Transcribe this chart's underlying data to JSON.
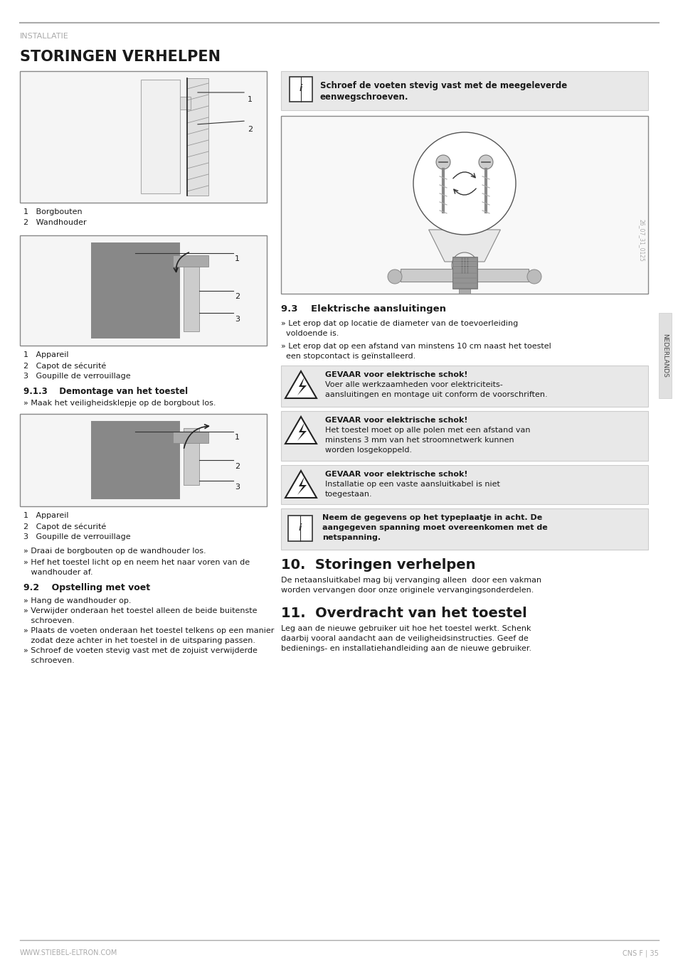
{
  "page_bg": "#ffffff",
  "line_color": "#aaaaaa",
  "header_small": "INSTALLATIE",
  "header_small_color": "#aaaaaa",
  "header_large": "STORINGEN VERHELPEN",
  "header_large_color": "#1a1a1a",
  "footer_left": "WWW.STIEBEL-ELTRON.COM",
  "footer_right": "CNS F | 35",
  "footer_color": "#aaaaaa",
  "sidebar_label": "NEDERLANDS",
  "sidebar_bg": "#e8e8e8",
  "sidebar_color": "#444444",
  "fig1_caption": [
    "1   Borgbouten",
    "2   Wandhouder"
  ],
  "fig2_caption": [
    "1   Appareil",
    "2   Capot de sécurité",
    "3   Goupille de verrouillage"
  ],
  "section_913_title": "9.1.3    Demontage van het toestel",
  "section_913_text": "» Maak het veiligheidsklepje op de borgbout los.",
  "fig3_caption": [
    "1   Appareil",
    "2   Capot de sécurité",
    "3   Goupille de verrouillage"
  ],
  "section_draai": "» Draai de borgbouten op de wandhouder los.",
  "section_hef_1": "» Hef het toestel licht op en neem het naar voren van de",
  "section_hef_2": "   wandhouder af.",
  "section_92_title": "9.2    Opstelling met voet",
  "section_92_bullets": [
    "» Hang de wandhouder op.",
    "» Verwijder onderaan het toestel alleen de beide buitenste",
    "   schroeven.",
    "» Plaats de voeten onderaan het toestel telkens op een manier",
    "   zodat deze achter in het toestel in de uitsparing passen.",
    "» Schroef de voeten stevig vast met de zojuist verwijderde",
    "   schroeven."
  ],
  "info_box_1_text_1": "Schroef de voeten stevig vast met de meegeleverde",
  "info_box_1_text_2": "eenwegschroeven.",
  "section_93_title": "9.3    Elektrische aansluitingen",
  "section_93_b1_1": "» Let erop dat op locatie de diameter van de toevoerleiding",
  "section_93_b1_2": "  voldoende is.",
  "section_93_b2_1": "» Let erop dat op een afstand van minstens 10 cm naast het toestel",
  "section_93_b2_2": "  een stopcontact is geïnstalleerd.",
  "warn1_l1": "GEVAAR voor elektrische schok!",
  "warn1_l2": "Voer alle werkzaamheden voor elektriciteits-",
  "warn1_l3": "aansluitingen en montage uit conform de voorschriften.",
  "warn2_l1": "GEVAAR voor elektrische schok!",
  "warn2_l2": "Het toestel moet op alle polen met een afstand van",
  "warn2_l3": "minstens 3 mm van het stroomnetwerk kunnen",
  "warn2_l4": "worden losgekoppeld.",
  "warn3_l1": "GEVAAR voor elektrische schok!",
  "warn3_l2": "Installatie op een vaste aansluitkabel is niet",
  "warn3_l3": "toegestaan.",
  "info2_l1": "Neem de gegevens op het typeplaatje in acht. De",
  "info2_l2": "aangegeven spanning moet overeenkomen met de",
  "info2_l3": "netspanning.",
  "section_10_title": "10.  Storingen verhelpen",
  "section_10_t1": "De netaansluitkabel mag bij vervanging alleen  door een vakman",
  "section_10_t2": "worden vervangen door onze originele vervangingsonderdelen.",
  "section_11_title": "11.  Overdracht van het toestel",
  "section_11_t1": "Leg aan de nieuwe gebruiker uit hoe het toestel werkt. Schenk",
  "section_11_t2": "daarbij vooral aandacht aan de veiligheidsinstructies. Geef de",
  "section_11_t3": "bedienings- en installatiehandleiding aan de nieuwe gebruiker."
}
